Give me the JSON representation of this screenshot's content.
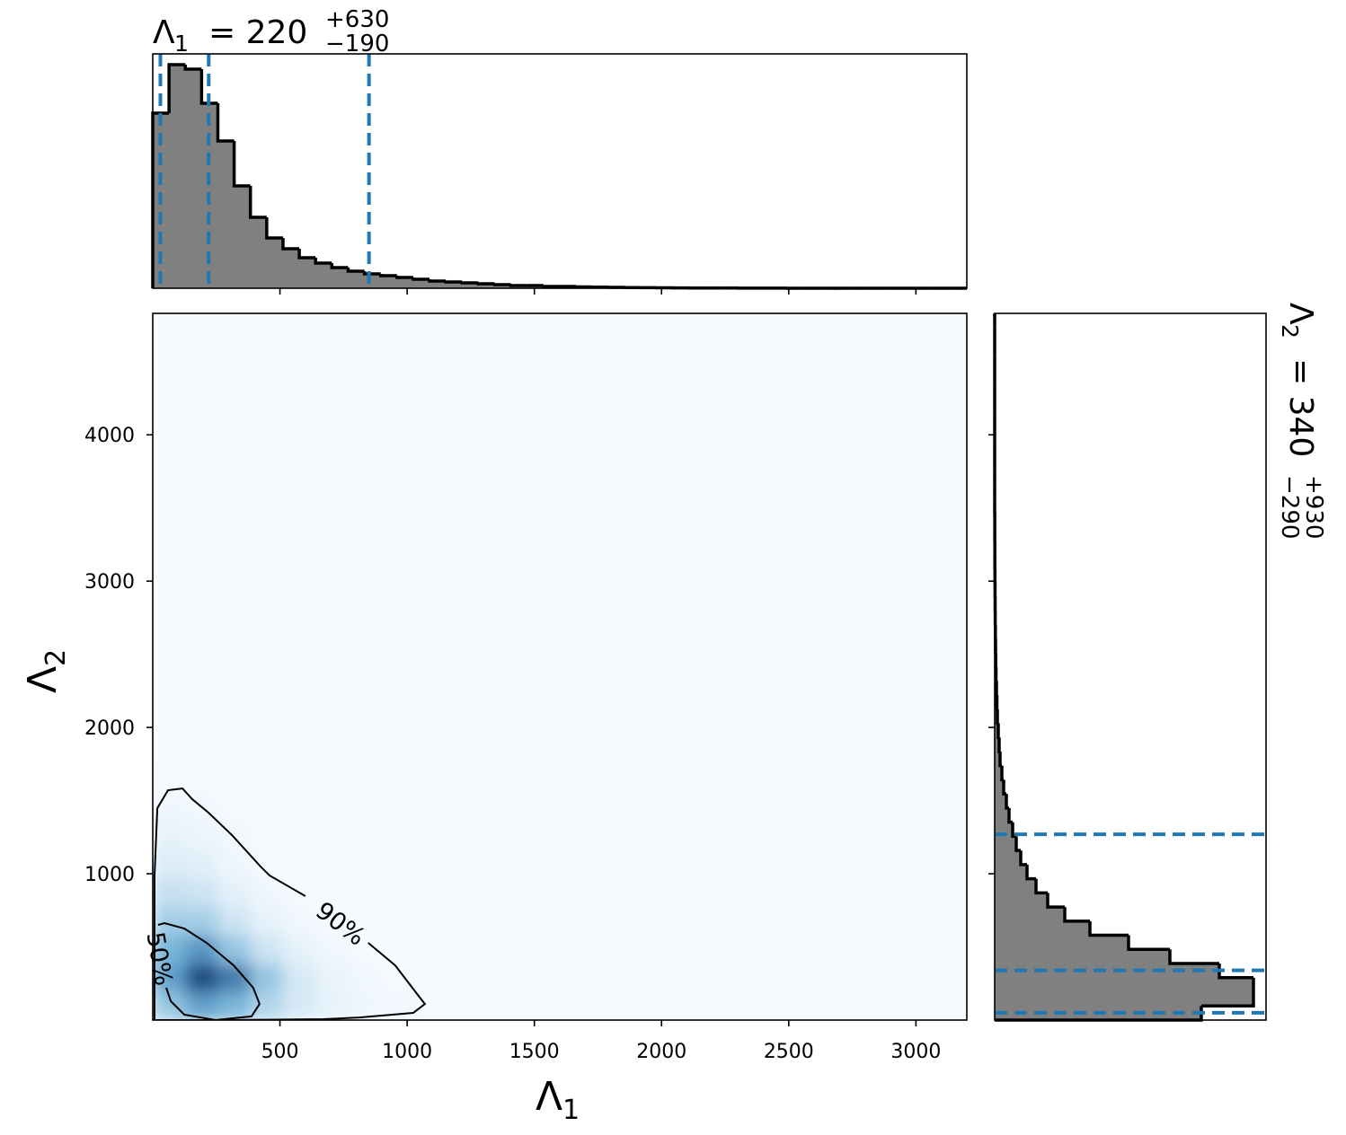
{
  "chart_data": {
    "type": "corner",
    "x_title": {
      "symbol": "Λ",
      "sub": "1",
      "eq": "= 220",
      "plus": "+630",
      "minus": "−190"
    },
    "y_title": {
      "symbol": "Λ",
      "sub": "2",
      "eq": "= 340",
      "plus": "+930",
      "minus": "−290"
    },
    "xlabel": {
      "symbol": "Λ",
      "sub": "1"
    },
    "ylabel": {
      "symbol": "Λ",
      "sub": "2"
    },
    "xlim": [
      0,
      3200
    ],
    "xticks": [
      500,
      1000,
      1500,
      2000,
      2500,
      3000
    ],
    "ylim": [
      0,
      4830
    ],
    "yticks": [
      1000,
      2000,
      3000,
      4000
    ],
    "hist_color": "#808080",
    "quantile_color": "#1f77b4",
    "x_hist": {
      "bins": [
        0,
        64,
        128,
        192,
        256,
        320,
        384,
        448,
        512,
        576,
        640,
        704,
        768,
        832,
        896,
        960,
        1024,
        1088,
        1152,
        1216,
        1280,
        1344,
        1408,
        1472,
        1536,
        1600,
        1664,
        1728,
        1792,
        1856,
        1920,
        1984,
        2048,
        2112,
        2176,
        2240,
        2304,
        2368,
        2432,
        2496,
        2560,
        2624,
        2688,
        2752,
        2816,
        2880,
        2944,
        3008,
        3072,
        3136,
        3200
      ],
      "counts": [
        195,
        249,
        244,
        206,
        164,
        114,
        79,
        56,
        44,
        34,
        28,
        23,
        19,
        16,
        14,
        12,
        10,
        8,
        7,
        6,
        5,
        4,
        3,
        3,
        2,
        2,
        1.5,
        1.2,
        1,
        0.8,
        0.6,
        0.5,
        0.4,
        0.3,
        0.2,
        0.2,
        0.1,
        0.1,
        0.1,
        0.05,
        0.05,
        0.05,
        0,
        0,
        0,
        0,
        0,
        0,
        0,
        0
      ],
      "ylim": [
        0,
        261
      ],
      "quantiles": [
        30,
        220,
        850
      ]
    },
    "y_hist": {
      "bins": [
        0,
        96.6,
        193.2,
        289.8,
        386.4,
        483,
        579.6,
        676.2,
        772.8,
        869.4,
        966,
        1062.6,
        1159.2,
        1255.8,
        1352.4,
        1449,
        1545.6,
        1642.2,
        1738.8,
        1835.4,
        1932,
        2028.6,
        2125.2,
        2221.8,
        2318.4,
        2415,
        2511.6,
        2608.2,
        2704.8,
        2801.4,
        2898,
        2994.6,
        3091.2,
        3187.8,
        3284.4,
        3381,
        3477.6,
        3574.2,
        3670.8,
        3767.4,
        3864,
        3960.6,
        4057.2,
        4153.8,
        4250.4,
        4347,
        4443.6,
        4540.2,
        4636.8,
        4733.4,
        4830
      ],
      "counts": [
        230,
        288,
        288,
        250,
        195,
        149,
        106,
        78,
        59,
        46,
        36,
        29,
        24,
        20,
        16,
        13,
        10,
        8,
        6,
        5,
        4,
        3,
        2.5,
        2,
        1.5,
        1.2,
        1,
        0.8,
        0.6,
        0.5,
        0.4,
        0.3,
        0.2,
        0.2,
        0.1,
        0.1,
        0,
        0,
        0,
        0,
        0,
        0,
        0,
        0,
        0,
        0,
        0,
        0,
        0,
        0
      ],
      "xlim": [
        0,
        302
      ],
      "quantiles": [
        50,
        340,
        1270
      ]
    },
    "density": {
      "cmap": [
        "#f7fbff",
        "#6baed6",
        "#08306b"
      ],
      "xedges": [
        0,
        128,
        256,
        384,
        512,
        640,
        768,
        896,
        1024,
        1152,
        1280
      ],
      "yedges": [
        0,
        193.2,
        386.4,
        579.6,
        772.8,
        966,
        1159.2,
        1352.4,
        1545.6,
        1738.8
      ],
      "values": [
        [
          0.35,
          0.55,
          0.45,
          0.25,
          0.12,
          0.06,
          0.03,
          0.02,
          0.01,
          0
        ],
        [
          0.55,
          0.9,
          0.7,
          0.35,
          0.12,
          0.05,
          0.02,
          0.01,
          0,
          0
        ],
        [
          0.45,
          0.6,
          0.35,
          0.15,
          0.06,
          0.02,
          0.01,
          0,
          0,
          0
        ],
        [
          0.3,
          0.3,
          0.15,
          0.06,
          0.02,
          0.01,
          0,
          0,
          0,
          0
        ],
        [
          0.18,
          0.15,
          0.07,
          0.03,
          0.01,
          0,
          0,
          0,
          0,
          0
        ],
        [
          0.1,
          0.08,
          0.03,
          0.01,
          0,
          0,
          0,
          0,
          0,
          0
        ],
        [
          0.06,
          0.04,
          0.02,
          0.01,
          0,
          0,
          0,
          0,
          0,
          0
        ],
        [
          0.03,
          0.02,
          0.01,
          0,
          0,
          0,
          0,
          0,
          0,
          0
        ],
        [
          0.01,
          0.01,
          0,
          0,
          0,
          0,
          0,
          0,
          0,
          0
        ]
      ]
    },
    "contours": [
      {
        "label": "90%",
        "x": [
          282,
          7,
          7,
          18,
          60,
          117,
          155,
          219,
          311,
          424,
          459,
          600,
          null,
          847,
          953,
          1042,
          1070,
          1024,
          812,
          671,
          282
        ],
        "y": [
          0,
          0,
          988,
          1448,
          1571,
          1583,
          1510,
          1418,
          1264,
          1049,
          988,
          847,
          null,
          528,
          374,
          172,
          110,
          49,
          18,
          6,
          0
        ]
      },
      {
        "label": "50%",
        "x": [
          21,
          46,
          124,
          212,
          318,
          395,
          420,
          388,
          247,
          124,
          71,
          53
        ],
        "y": [
          650,
          663,
          626,
          528,
          374,
          221,
          110,
          25,
          0,
          37,
          129,
          221
        ]
      }
    ]
  }
}
